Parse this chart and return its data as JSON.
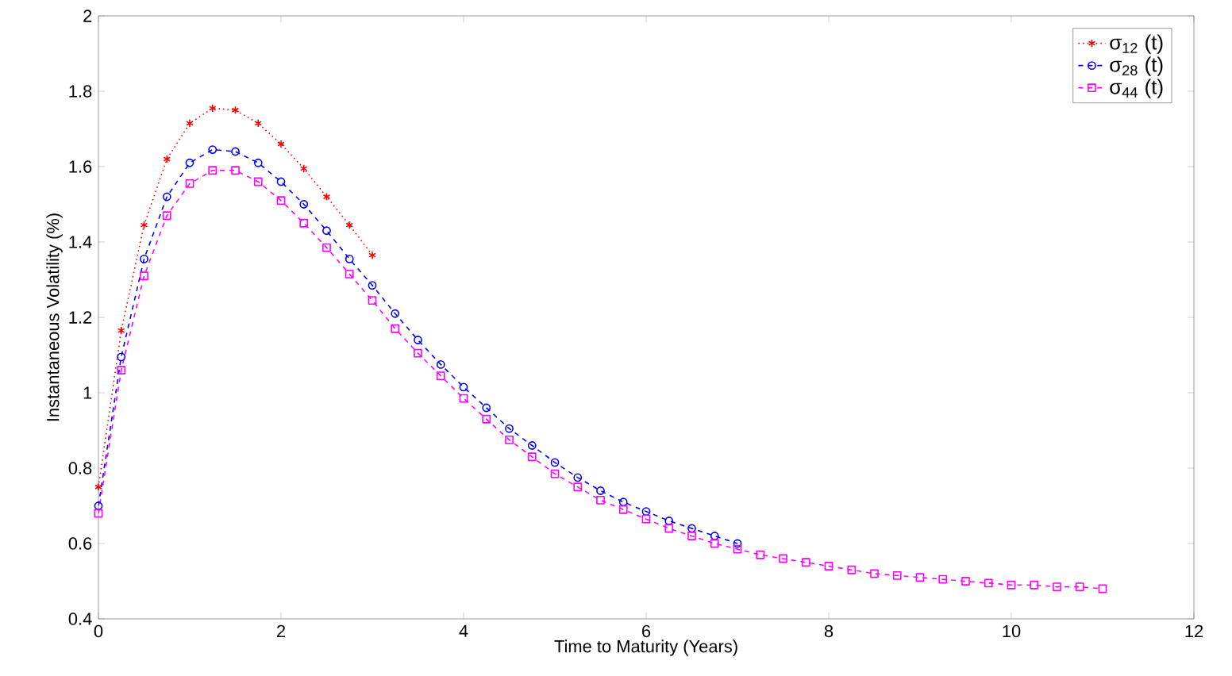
{
  "chart_data": {
    "type": "line",
    "xlabel": "Time to Maturity (Years)",
    "ylabel": "Instantaneous Volatility (%)",
    "xlim": [
      0,
      12
    ],
    "ylim": [
      0.4,
      2
    ],
    "xticks": [
      0,
      2,
      4,
      6,
      8,
      10,
      12
    ],
    "yticks": [
      0.4,
      0.6,
      0.8,
      1,
      1.2,
      1.4,
      1.6,
      1.8,
      2
    ],
    "grid": false,
    "legend": "top right",
    "series": [
      {
        "name": "σ$_{12}$ (t)",
        "color": "#ff0000",
        "marker": "cross",
        "line_style": "dotted",
        "x": [
          0,
          0.25,
          0.5,
          0.75,
          1,
          1.25,
          1.5,
          1.75,
          2,
          2.25,
          2.5,
          2.75,
          3
        ],
        "values": [
          0.75,
          1.165,
          1.445,
          1.62,
          1.715,
          1.755,
          1.75,
          1.715,
          1.66,
          1.595,
          1.52,
          1.445,
          1.365
        ]
      },
      {
        "name": "σ$_{28}$ (t)",
        "color": "#0000ff",
        "marker": "circle",
        "line_style": "dashed",
        "x": [
          0,
          0.25,
          0.5,
          0.75,
          1,
          1.25,
          1.5,
          1.75,
          2,
          2.25,
          2.5,
          2.75,
          3,
          3.25,
          3.5,
          3.75,
          4,
          4.25,
          4.5,
          4.75,
          5,
          5.25,
          5.5,
          5.75,
          6,
          6.25,
          6.5,
          6.75,
          7
        ],
        "values": [
          0.7,
          1.095,
          1.355,
          1.52,
          1.61,
          1.645,
          1.64,
          1.61,
          1.56,
          1.5,
          1.43,
          1.355,
          1.285,
          1.21,
          1.14,
          1.075,
          1.015,
          0.96,
          0.905,
          0.86,
          0.815,
          0.775,
          0.74,
          0.71,
          0.685,
          0.66,
          0.64,
          0.62,
          0.6
        ]
      },
      {
        "name": "σ$_{44}$ (t)",
        "color": "#ff00ff",
        "marker": "square",
        "line_style": "dashed",
        "x": [
          0,
          0.25,
          0.5,
          0.75,
          1,
          1.25,
          1.5,
          1.75,
          2,
          2.25,
          2.5,
          2.75,
          3,
          3.25,
          3.5,
          3.75,
          4,
          4.25,
          4.5,
          4.75,
          5,
          5.25,
          5.5,
          5.75,
          6,
          6.25,
          6.5,
          6.75,
          7,
          7.25,
          7.5,
          7.75,
          8,
          8.25,
          8.5,
          8.75,
          9,
          9.25,
          9.5,
          9.75,
          10,
          10.25,
          10.5,
          10.75,
          11
        ],
        "values": [
          0.68,
          1.06,
          1.31,
          1.47,
          1.555,
          1.59,
          1.59,
          1.56,
          1.51,
          1.45,
          1.385,
          1.315,
          1.245,
          1.17,
          1.105,
          1.045,
          0.985,
          0.93,
          0.875,
          0.83,
          0.785,
          0.75,
          0.715,
          0.69,
          0.665,
          0.64,
          0.62,
          0.6,
          0.585,
          0.57,
          0.56,
          0.55,
          0.54,
          0.53,
          0.52,
          0.515,
          0.51,
          0.505,
          0.5,
          0.495,
          0.49,
          0.49,
          0.485,
          0.485,
          0.48
        ]
      }
    ]
  }
}
